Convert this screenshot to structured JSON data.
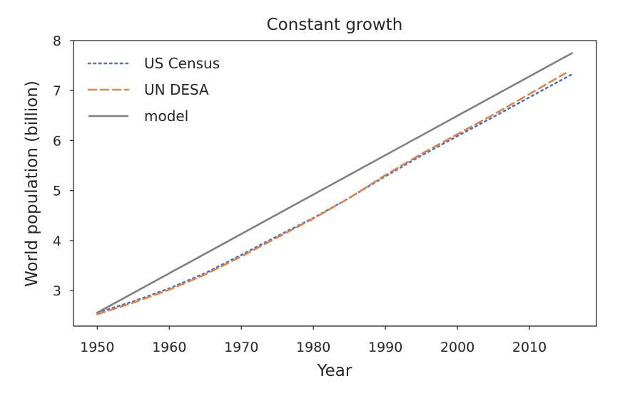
{
  "chart_data": {
    "type": "line",
    "title": "Constant growth",
    "xlabel": "Year",
    "ylabel": "World population (billion)",
    "xlim": [
      1946.7,
      2019.3
    ],
    "ylim": [
      2.29,
      8.0
    ],
    "xticks": [
      1950,
      1960,
      1970,
      1980,
      1990,
      2000,
      2010
    ],
    "yticks": [
      3,
      4,
      5,
      6,
      7,
      8
    ],
    "grid": false,
    "legend_position": "top-left",
    "series": [
      {
        "name": "US Census",
        "color": "#4c72b0",
        "style": "dotted",
        "x": [
          1950,
          1955,
          1960,
          1965,
          1970,
          1975,
          1980,
          1985,
          1990,
          1995,
          2000,
          2005,
          2010,
          2016
        ],
        "y": [
          2.557,
          2.782,
          3.043,
          3.35,
          3.712,
          4.089,
          4.451,
          4.855,
          5.287,
          5.7,
          6.09,
          6.474,
          6.866,
          7.334
        ]
      },
      {
        "name": "UN DESA",
        "color": "#dd8452",
        "style": "dashed",
        "x": [
          1950,
          1955,
          1960,
          1965,
          1970,
          1975,
          1980,
          1985,
          1990,
          1995,
          2000,
          2005,
          2010,
          2015
        ],
        "y": [
          2.525,
          2.758,
          3.018,
          3.322,
          3.682,
          4.061,
          4.44,
          4.853,
          5.31,
          5.735,
          6.127,
          6.52,
          6.93,
          7.349
        ]
      },
      {
        "name": "model",
        "color": "#808080",
        "style": "solid",
        "x": [
          1950,
          2016
        ],
        "y": [
          2.557,
          7.757
        ]
      }
    ]
  }
}
